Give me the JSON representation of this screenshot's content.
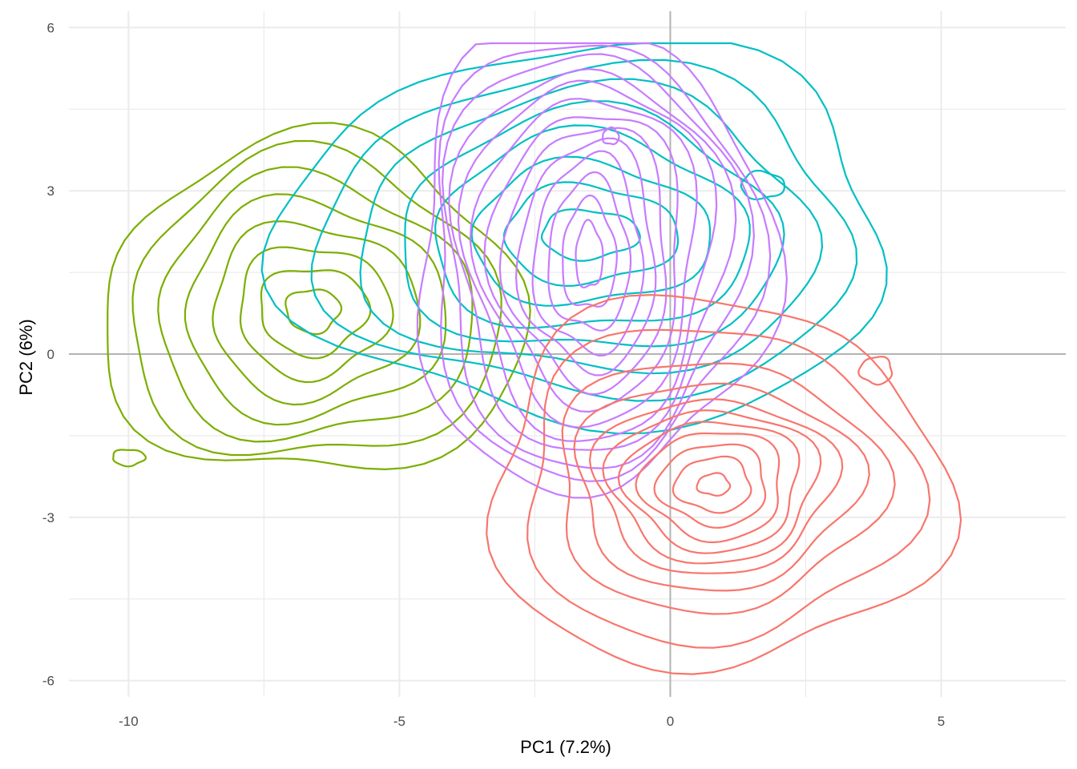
{
  "chart_data": {
    "type": "contour",
    "title": "",
    "xlabel": "PC1 (7.2%)",
    "ylabel": "PC2 (6%)",
    "xlim": [
      -11.1,
      7.3
    ],
    "ylim": [
      -6.3,
      6.3
    ],
    "x_ticks": [
      -10,
      -5,
      0,
      5
    ],
    "y_ticks": [
      -6,
      -3,
      0,
      3,
      6
    ],
    "x_tick_labels": [
      "-10",
      "-5",
      "0",
      "5"
    ],
    "y_tick_labels": [
      "-6",
      "-3",
      "0",
      "3",
      "6"
    ],
    "reference_lines": {
      "x": 0,
      "y": 0
    },
    "grid": true,
    "legend": "none",
    "series": [
      {
        "color": "#7CAE00",
        "peaks": [
          {
            "x": -6.6,
            "y": 0.8,
            "rx": [
              0.5,
              1.0,
              1.4,
              1.9,
              2.4,
              2.9,
              3.4,
              3.9
            ],
            "ry": [
              0.4,
              0.8,
              1.2,
              1.6,
              2.0,
              2.4,
              2.8,
              3.1
            ]
          },
          {
            "x": -10.0,
            "y": -1.9,
            "rx": [
              0.3
            ],
            "ry": [
              0.15
            ]
          }
        ]
      },
      {
        "color": "#00BFC4",
        "peaks": [
          {
            "x": -1.5,
            "y": 2.2,
            "rx": [
              0.9,
              1.6,
              2.2,
              2.9,
              3.5,
              4.2,
              4.9,
              5.6
            ],
            "ry": [
              0.45,
              0.9,
              1.3,
              1.8,
              2.2,
              2.6,
              3.0,
              3.5
            ]
          },
          {
            "x": 1.7,
            "y": 3.1,
            "rx": [
              0.4
            ],
            "ry": [
              0.25
            ]
          }
        ]
      },
      {
        "color": "#C77CFF",
        "peaks": [
          {
            "x": -1.5,
            "y": 1.8,
            "rx": [
              0.25,
              0.5,
              0.75,
              1.0,
              1.25,
              1.5,
              1.75,
              2.0,
              2.25,
              2.5,
              2.75,
              3.0,
              3.3
            ],
            "ry": [
              0.6,
              1.0,
              1.4,
              1.8,
              2.1,
              2.4,
              2.7,
              3.0,
              3.3,
              3.5,
              3.8,
              4.0,
              4.3
            ]
          },
          {
            "x": -1.1,
            "y": 4.0,
            "rx": [
              0.15
            ],
            "ry": [
              0.15
            ]
          }
        ]
      },
      {
        "color": "#F8766D",
        "peaks": [
          {
            "x": 0.8,
            "y": -2.4,
            "rx": [
              0.3,
              0.7,
              1.0,
              1.3,
              1.6,
              1.9,
              2.2,
              2.6,
              3.0,
              3.6,
              4.2
            ],
            "ry": [
              0.2,
              0.5,
              0.75,
              1.0,
              1.2,
              1.4,
              1.6,
              1.9,
              2.3,
              2.9,
              3.4
            ]
          },
          {
            "x": 3.8,
            "y": -0.3,
            "rx": [
              0.3
            ],
            "ry": [
              0.25
            ]
          }
        ]
      }
    ]
  }
}
